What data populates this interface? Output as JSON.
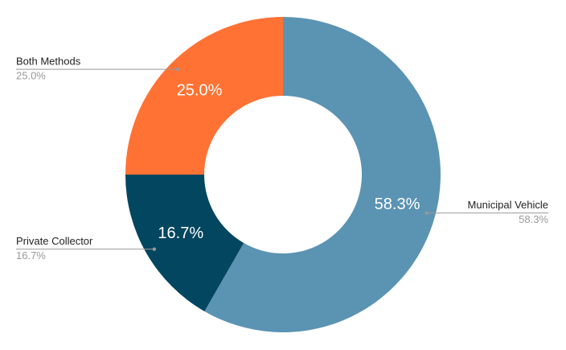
{
  "chart_data": {
    "type": "pie",
    "categories": [
      "Municipal Vehicle",
      "Private Collector",
      "Both Methods"
    ],
    "values": [
      58.3,
      16.7,
      25.0
    ],
    "value_labels": [
      "58.3%",
      "16.7%",
      "25.0%"
    ],
    "colors": [
      "#5b93b3",
      "#03465f",
      "#ff7233"
    ]
  }
}
